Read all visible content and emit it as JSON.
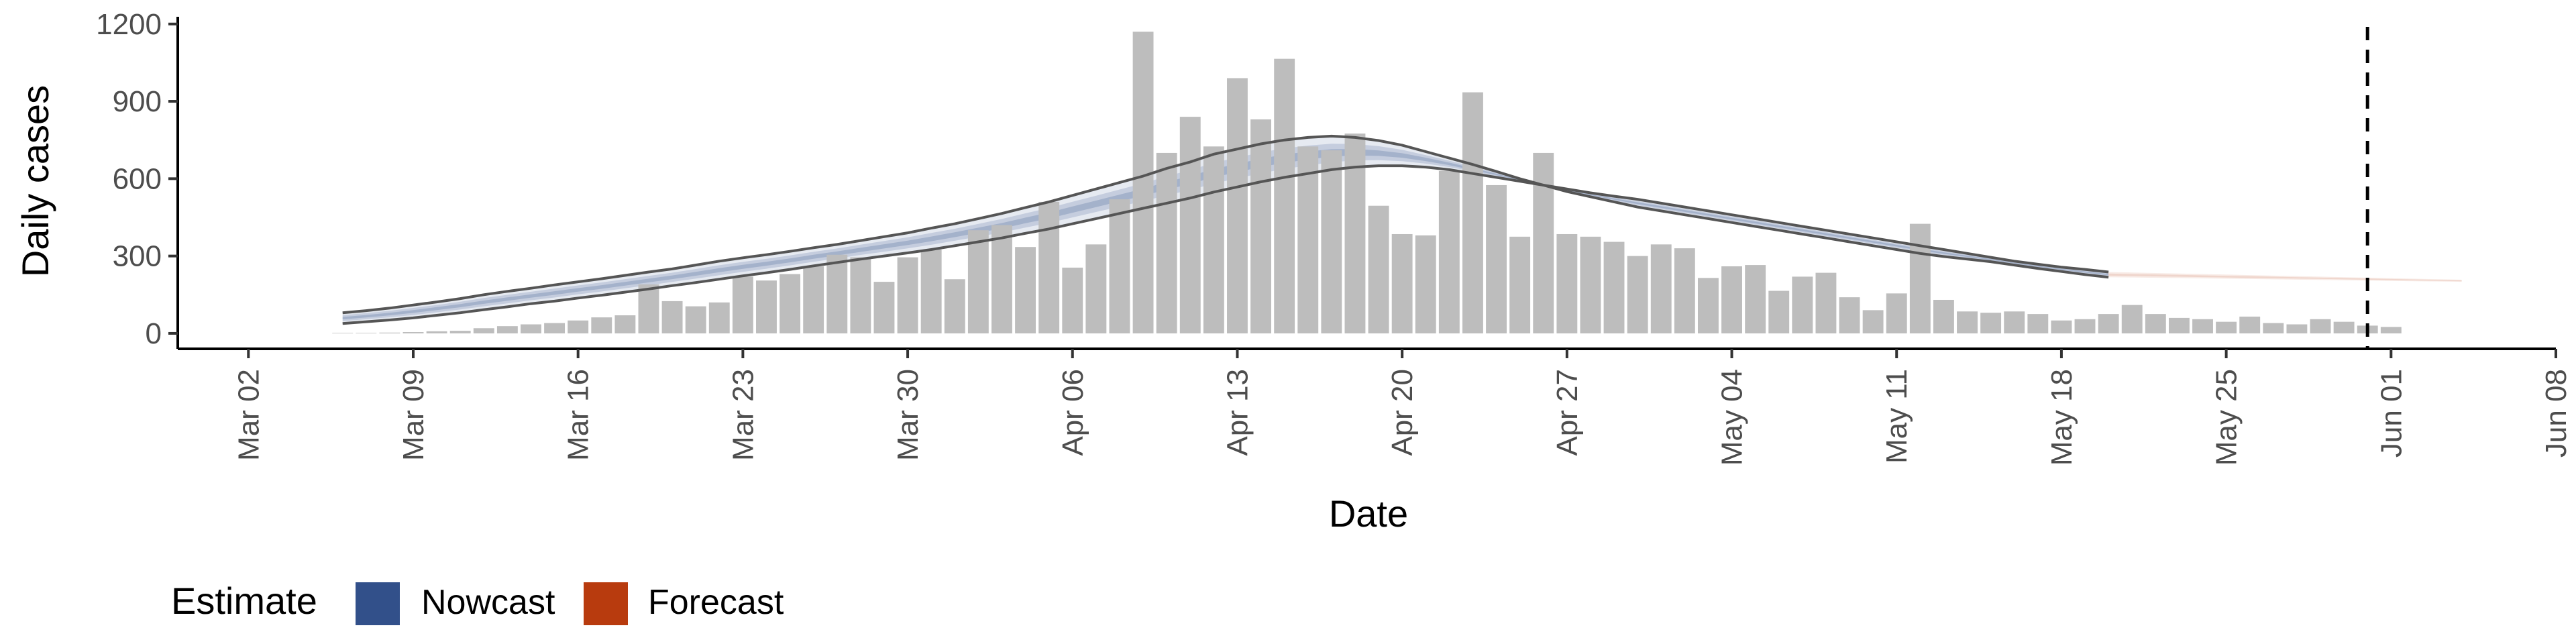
{
  "chart_data": {
    "type": "bar",
    "title": "",
    "xlabel": "Date",
    "ylabel": "Daily cases",
    "x_range": [
      "2020-02-28",
      "2020-06-08"
    ],
    "ylim": [
      -60,
      1215
    ],
    "y_ticks": [
      0,
      300,
      600,
      900,
      1200
    ],
    "x_ticks": [
      {
        "date": "2020-03-02",
        "label": "Mar 02"
      },
      {
        "date": "2020-03-09",
        "label": "Mar 09"
      },
      {
        "date": "2020-03-16",
        "label": "Mar 16"
      },
      {
        "date": "2020-03-23",
        "label": "Mar 23"
      },
      {
        "date": "2020-03-30",
        "label": "Mar 30"
      },
      {
        "date": "2020-04-06",
        "label": "Apr 06"
      },
      {
        "date": "2020-04-13",
        "label": "Apr 13"
      },
      {
        "date": "2020-04-20",
        "label": "Apr 20"
      },
      {
        "date": "2020-04-27",
        "label": "Apr 27"
      },
      {
        "date": "2020-05-04",
        "label": "May 04"
      },
      {
        "date": "2020-05-11",
        "label": "May 11"
      },
      {
        "date": "2020-05-18",
        "label": "May 18"
      },
      {
        "date": "2020-05-25",
        "label": "May 25"
      },
      {
        "date": "2020-06-01",
        "label": "Jun 01"
      },
      {
        "date": "2020-06-08",
        "label": "Jun 08"
      }
    ],
    "bars": {
      "start_date": "2020-03-06",
      "color": "#bdbdbd",
      "values": [
        2,
        2,
        3,
        5,
        8,
        10,
        20,
        28,
        35,
        40,
        50,
        62,
        70,
        190,
        125,
        105,
        120,
        220,
        205,
        230,
        260,
        305,
        295,
        200,
        295,
        325,
        210,
        400,
        420,
        335,
        510,
        255,
        345,
        520,
        1170,
        700,
        840,
        725,
        990,
        830,
        1065,
        725,
        710,
        775,
        495,
        385,
        380,
        630,
        935,
        575,
        375,
        700,
        385,
        375,
        355,
        300,
        345,
        330,
        215,
        260,
        265,
        165,
        220,
        235,
        140,
        90,
        155,
        425,
        130,
        85,
        80,
        85,
        75,
        50,
        55,
        75,
        110,
        75,
        60,
        55,
        45,
        65,
        40,
        35,
        55,
        45,
        30,
        25
      ]
    },
    "model": {
      "start_date": "2020-03-06",
      "nowcast_end_date": "2020-05-20",
      "forecast_end_date": "2020-06-04",
      "outer_upper": [
        80,
        88,
        98,
        110,
        122,
        135,
        150,
        163,
        175,
        188,
        200,
        212,
        225,
        238,
        250,
        265,
        280,
        293,
        305,
        318,
        332,
        345,
        360,
        375,
        390,
        408,
        425,
        445,
        465,
        488,
        510,
        535,
        560,
        585,
        610,
        640,
        665,
        695,
        715,
        735,
        750,
        760,
        765,
        760,
        748,
        730,
        705,
        680,
        655,
        628,
        600,
        575,
        550,
        530,
        510,
        490,
        475,
        460,
        445,
        430,
        415,
        400,
        385,
        370,
        355,
        340,
        325,
        310,
        298,
        288,
        278,
        265,
        252,
        240,
        228,
        218,
        210,
        200,
        192,
        185,
        178,
        170,
        162,
        155,
        148,
        140,
        132,
        125,
        118,
        112,
        106,
        100,
        95,
        92,
        90,
        88,
        86,
        84,
        82,
        80,
        78,
        76,
        75,
        73,
        72,
        70,
        68,
        66,
        64,
        62,
        60,
        58,
        56,
        54,
        52,
        50,
        48,
        46,
        44,
        42,
        40,
        38,
        36,
        34,
        32,
        30,
        28,
        26,
        24,
        22,
        20,
        18,
        16,
        14,
        12,
        10,
        8,
        6,
        4,
        2,
        0,
        0,
        0,
        0,
        0,
        0,
        0,
        0,
        0,
        0,
        0,
        0,
        0,
        0,
        0
      ],
      "outer_lower": [
        38,
        45,
        52,
        60,
        70,
        80,
        92,
        103,
        115,
        125,
        137,
        148,
        160,
        172,
        185,
        197,
        210,
        223,
        235,
        248,
        262,
        275,
        288,
        300,
        312,
        325,
        340,
        355,
        370,
        388,
        405,
        425,
        445,
        465,
        485,
        505,
        525,
        548,
        568,
        588,
        605,
        620,
        635,
        645,
        650,
        650,
        645,
        635,
        620,
        605,
        590,
        575,
        560,
        545,
        532,
        520,
        505,
        490,
        475,
        460,
        445,
        430,
        415,
        400,
        385,
        370,
        355,
        340,
        325,
        310,
        295,
        280,
        268,
        257,
        248,
        238,
        228,
        218,
        208,
        198,
        190,
        183,
        177,
        172,
        168,
        164,
        160,
        156,
        152,
        148,
        144,
        140,
        136,
        132,
        128,
        124,
        120,
        116,
        112,
        108,
        104,
        100,
        96,
        92,
        88,
        84,
        80,
        76,
        72,
        68,
        64,
        60,
        56,
        52,
        48,
        44,
        40,
        36,
        32,
        28,
        24,
        20,
        16,
        12,
        8,
        4,
        2,
        0,
        0,
        0,
        0,
        0,
        0,
        0,
        0,
        0,
        0,
        0,
        0,
        0,
        0,
        0,
        0,
        0,
        0,
        0,
        0,
        0,
        0,
        0,
        0,
        0,
        0,
        0,
        0
      ],
      "note_dummy": ""
    },
    "cutoff_date": "2020-05-31",
    "legend": {
      "title": "Estimate",
      "placement": "bottom-left",
      "entries": [
        {
          "label": "Nowcast",
          "color": "#32508a"
        },
        {
          "label": "Forecast",
          "color": "#b83b0e"
        }
      ]
    }
  }
}
